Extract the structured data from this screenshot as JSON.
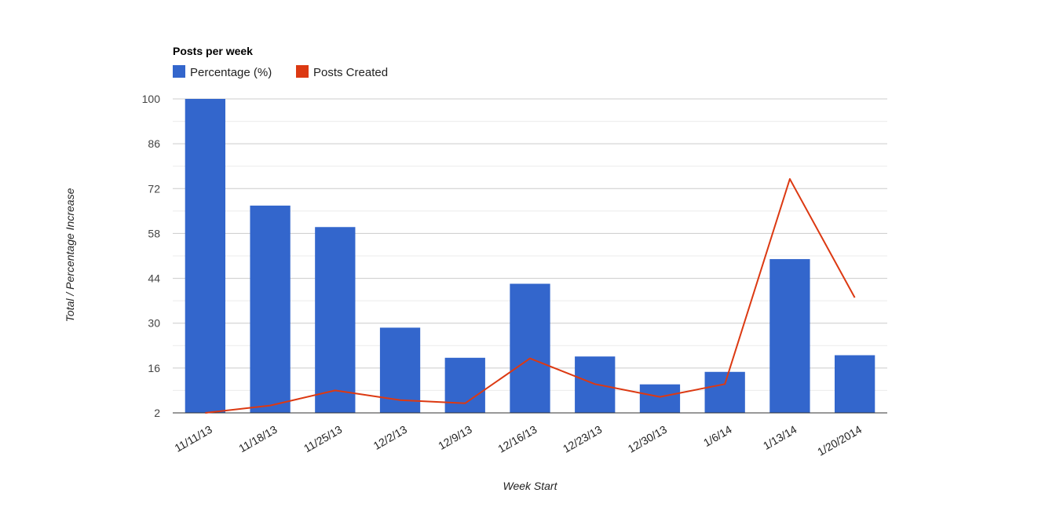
{
  "chart_data": {
    "type": "bar",
    "title": "Posts per week",
    "xlabel": "Week Start",
    "ylabel": "Total / Percentage Increase",
    "categories": [
      "11/11/13",
      "11/18/13",
      "11/25/13",
      "12/2/13",
      "12/9/13",
      "12/16/13",
      "12/23/13",
      "12/30/13",
      "1/6/14",
      "1/13/14",
      "1/20/2014"
    ],
    "ylim": [
      2,
      100
    ],
    "y_ticks": [
      "100",
      "86",
      "72",
      "58",
      "44",
      "30",
      "16",
      "2"
    ],
    "grid": true,
    "legend_position": "top-left",
    "series": [
      {
        "name": "Percentage (%)",
        "type": "bar",
        "color": "#3366cc",
        "values": [
          100,
          66.7,
          60,
          28.6,
          19.2,
          42.3,
          19.6,
          10.9,
          14.8,
          50,
          20
        ]
      },
      {
        "name": "Posts Created",
        "type": "line",
        "color": "#dc3912",
        "values": [
          2,
          4.3,
          9,
          6,
          5,
          19,
          11,
          7,
          11,
          75,
          38
        ]
      }
    ]
  }
}
